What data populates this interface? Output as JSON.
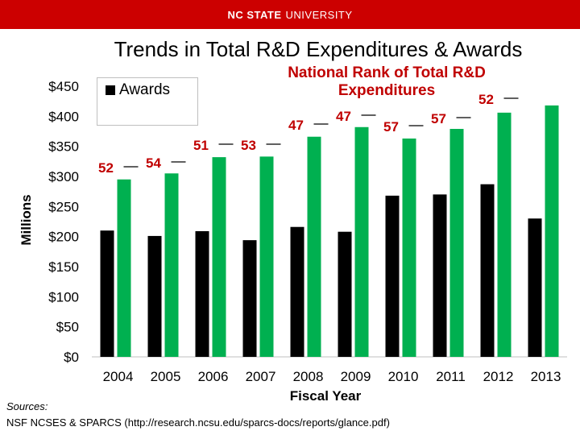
{
  "header": {
    "brand_bold": "NC STATE",
    "brand_light": "UNIVERSITY"
  },
  "chart_data": {
    "type": "bar",
    "title": "Trends in Total R&D Expenditures & Awards",
    "xlabel": "Fiscal Year",
    "ylabel": "Millions",
    "categories": [
      "2004",
      "2005",
      "2006",
      "2007",
      "2008",
      "2009",
      "2010",
      "2011",
      "2012",
      "2013"
    ],
    "ylim": [
      0,
      450
    ],
    "yticks": [
      0,
      50,
      100,
      150,
      200,
      250,
      300,
      350,
      400,
      450
    ],
    "ytick_labels": [
      "$0",
      "$50",
      "$100",
      "$150",
      "$200",
      "$250",
      "$300",
      "$350",
      "$400",
      "$450"
    ],
    "series": [
      {
        "name": "Awards",
        "color": "#000000",
        "values": [
          210,
          201,
          209,
          194,
          216,
          208,
          268,
          270,
          287,
          230
        ]
      },
      {
        "name": "Total R&D Expenditures",
        "color": "#00b050",
        "values": [
          295,
          305,
          332,
          333,
          366,
          382,
          363,
          379,
          406,
          418
        ]
      }
    ],
    "legend": {
      "entry": "Awards",
      "position": "top-left"
    },
    "rank_annotation": {
      "title": "National Rank of Total R&D Expenditures",
      "color": "#c00000",
      "ranks": [
        "52",
        "54",
        "51",
        "53",
        "47",
        "47",
        "57",
        "57",
        "52",
        ""
      ]
    }
  },
  "sources": {
    "label": "Sources:",
    "text": "NSF NCSES & SPARCS (http://research.ncsu.edu/sparcs-docs/reports/glance.pdf)"
  }
}
